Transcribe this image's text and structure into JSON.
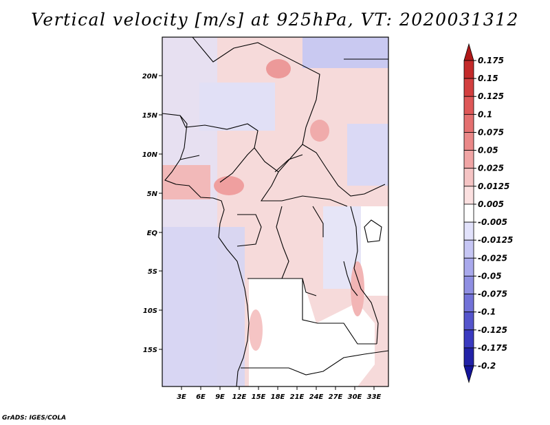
{
  "title": "Vertical velocity [m/s] at 925hPa, VT: 2020031312",
  "footer": "GrADS: IGES/COLA",
  "map": {
    "lon_labels": [
      "3E",
      "6E",
      "9E",
      "12E",
      "15E",
      "18E",
      "21E",
      "24E",
      "27E",
      "30E",
      "33E"
    ],
    "lat_labels": [
      "20N",
      "15N",
      "10N",
      "5N",
      "EQ",
      "5S",
      "10S",
      "15S"
    ],
    "lat_range": [
      -19.5,
      24.5
    ],
    "lon_range": [
      0,
      34.5
    ]
  },
  "colorbar": {
    "labels": [
      "0.175",
      "0.15",
      "0.125",
      "0.1",
      "0.075",
      "0.05",
      "0.025",
      "0.0125",
      "0.005",
      "-0.005",
      "-0.0125",
      "-0.025",
      "-0.05",
      "-0.075",
      "-0.1",
      "-0.125",
      "-0.175",
      "-0.2"
    ],
    "colors": [
      "#a51d1d",
      "#c32a2a",
      "#d23f3f",
      "#de5858",
      "#e47070",
      "#ea8888",
      "#f0a5a5",
      "#f5c4c4",
      "#fbe0e0",
      "#ffffff",
      "#e2e2fb",
      "#c6c6f4",
      "#a9a9ec",
      "#8f8fe2",
      "#7272d8",
      "#5555cc",
      "#3a3ac0",
      "#2222a8",
      "#0c0c8c"
    ],
    "colors_top": "#b01818",
    "colors_bottom": "#14149a"
  }
}
